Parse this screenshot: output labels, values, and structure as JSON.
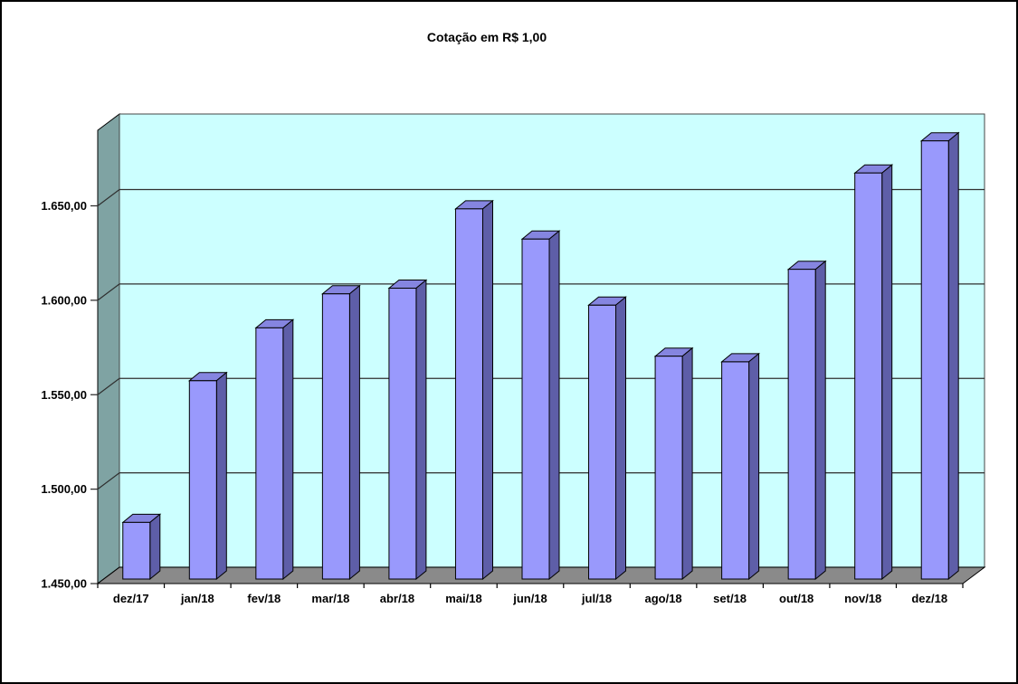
{
  "chart_data": {
    "type": "bar",
    "style": "3d-column",
    "title": "Cotação em R$ 1,00",
    "categories": [
      "dez/17",
      "jan/18",
      "fev/18",
      "mar/18",
      "abr/18",
      "mai/18",
      "jun/18",
      "jul/18",
      "ago/18",
      "set/18",
      "out/18",
      "nov/18",
      "dez/18"
    ],
    "values": [
      1480,
      1555,
      1583,
      1601,
      1604,
      1646,
      1630,
      1595,
      1568,
      1565,
      1614,
      1665,
      1682
    ],
    "xlabel": "",
    "ylabel": "",
    "ylim": [
      1450,
      1690
    ],
    "yticks": [
      1450,
      1500,
      1550,
      1600,
      1650
    ],
    "ytick_labels": [
      "1.450,00",
      "1.500,00",
      "1.550,00",
      "1.600,00",
      "1.650,00"
    ],
    "grid": true,
    "legend": false,
    "colors": {
      "bar_front": "#9999FC",
      "bar_top": "#8585E0",
      "bar_side": "#5E5EA8",
      "back_wall": "#CCFFFF",
      "side_wall": "#7FA3A3",
      "floor": "#8A8A8A",
      "outline": "#000000",
      "gridline": "#2F2F2F",
      "text": "#000000"
    }
  }
}
